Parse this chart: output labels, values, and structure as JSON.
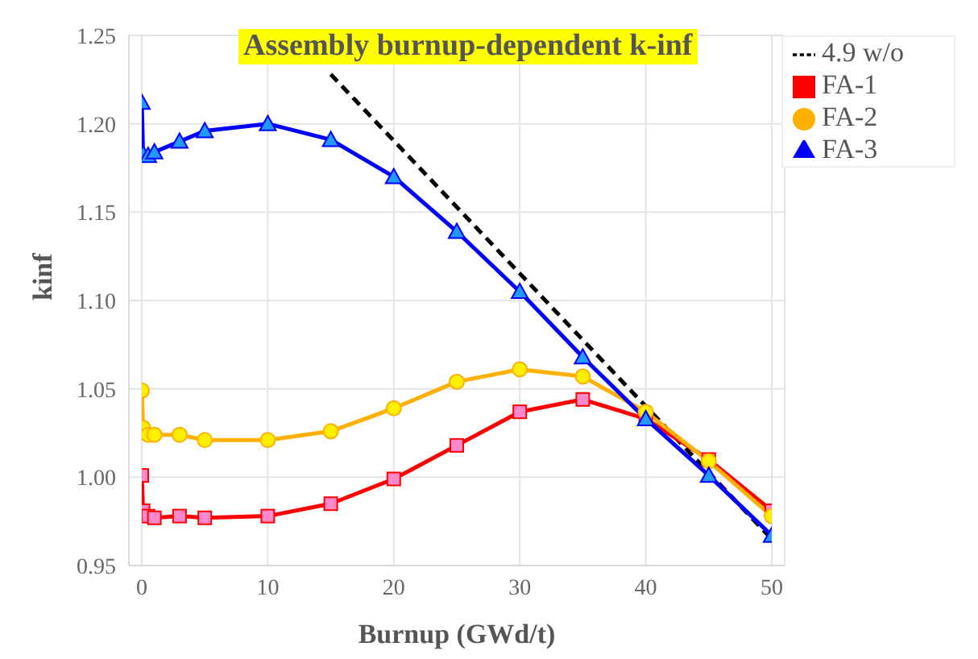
{
  "chart_data": {
    "type": "line",
    "title": "Assembly burnup-dependent k-inf",
    "xlabel": "Burnup (GWd/t)",
    "ylabel": "kinf",
    "xlim": [
      0,
      50
    ],
    "xticks": [
      0,
      10,
      20,
      30,
      40,
      50
    ],
    "ylim": [
      0.95,
      1.25
    ],
    "yticks": [
      {
        "value": 0.95,
        "label": "0.95"
      },
      {
        "value": 1.0,
        "label": "1.00"
      },
      {
        "value": 1.05,
        "label": "1.05"
      },
      {
        "value": 1.1,
        "label": "1.10"
      },
      {
        "value": 1.15,
        "label": "1.15"
      },
      {
        "value": 1.2,
        "label": "1.20"
      },
      {
        "value": 1.25,
        "label": "1.25"
      }
    ],
    "grid": true,
    "legend": "top right",
    "series": [
      {
        "name": "4.9 w/o",
        "color": "#000000",
        "line_style": "dashed",
        "marker": "none",
        "x": [
          15,
          50
        ],
        "values": [
          1.228,
          0.965
        ]
      },
      {
        "name": "FA-1",
        "color": "#ff0000",
        "marker": "square",
        "x": [
          0,
          0.1,
          0.5,
          1,
          3,
          5,
          10,
          15,
          20,
          25,
          30,
          35,
          40,
          45,
          50
        ],
        "values": [
          1.001,
          0.981,
          0.978,
          0.977,
          0.978,
          0.977,
          0.978,
          0.985,
          0.999,
          1.018,
          1.037,
          1.044,
          1.033,
          1.01,
          0.981
        ]
      },
      {
        "name": "FA-2",
        "color": "#ffb000",
        "marker": "circle",
        "x": [
          0,
          0.1,
          0.5,
          1,
          3,
          5,
          10,
          15,
          20,
          25,
          30,
          35,
          40,
          45,
          50
        ],
        "values": [
          1.049,
          1.028,
          1.024,
          1.024,
          1.024,
          1.021,
          1.021,
          1.026,
          1.039,
          1.054,
          1.061,
          1.057,
          1.037,
          1.009,
          0.978
        ]
      },
      {
        "name": "FA-3",
        "color": "#0000ff",
        "marker": "triangle",
        "x": [
          0,
          0.1,
          0.5,
          1,
          3,
          5,
          10,
          15,
          20,
          25,
          30,
          35,
          40,
          45,
          50
        ],
        "values": [
          1.212,
          1.183,
          1.182,
          1.184,
          1.19,
          1.196,
          1.2,
          1.191,
          1.17,
          1.139,
          1.105,
          1.068,
          1.033,
          1.001,
          0.967
        ]
      }
    ]
  }
}
